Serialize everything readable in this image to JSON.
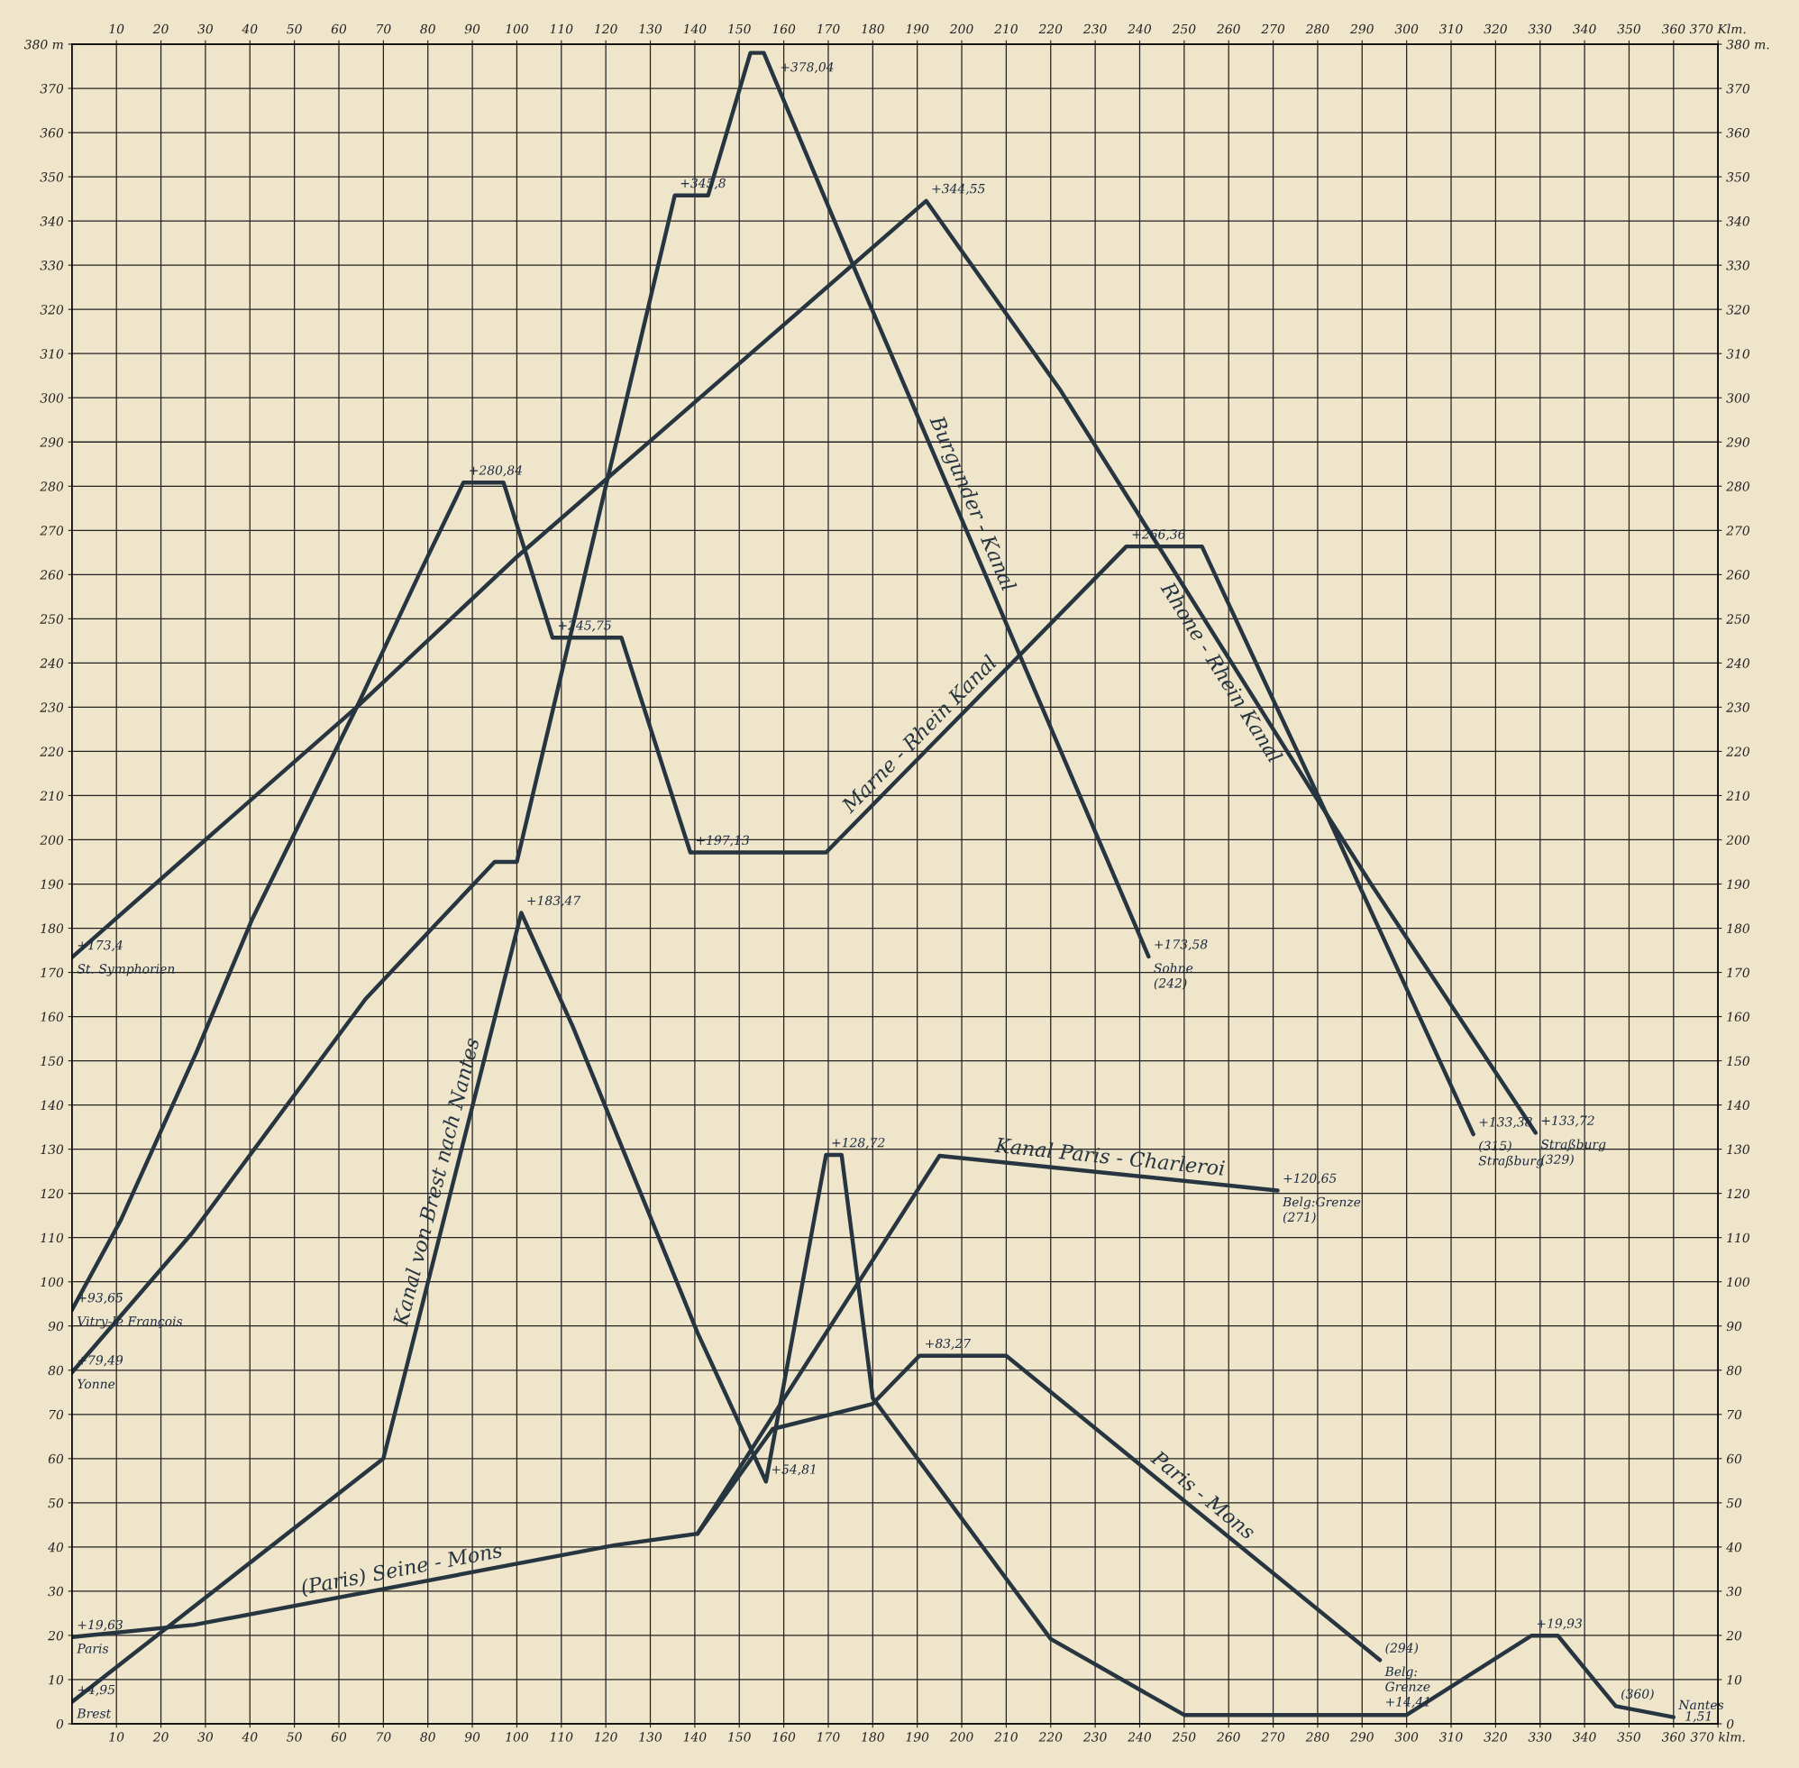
{
  "chart_data": {
    "type": "line",
    "series": [
      {
        "name": "Marne - Rhein Kanal",
        "color": "#26353f",
        "x": [
          0,
          11,
          28,
          40.5,
          64,
          78,
          88,
          97,
          108,
          123.5,
          139,
          169.5,
          237,
          254,
          268,
          281,
          315
        ],
        "values": [
          93.65,
          114,
          152,
          182,
          230,
          260,
          280.84,
          280.84,
          245.75,
          245.75,
          197.13,
          197.13,
          266.36,
          266.36,
          236,
          208,
          133.38
        ]
      },
      {
        "name": "Rhone - Rhein Kanal",
        "color": "#26353f",
        "x": [
          0,
          30,
          64,
          100,
          140,
          192,
          222,
          242,
          280,
          292,
          329
        ],
        "values": [
          173.4,
          200,
          230,
          264,
          299,
          344.55,
          302,
          270,
          209,
          190,
          133.72
        ]
      },
      {
        "name": "Burgunder - Kanal",
        "color": "#26353f",
        "x": [
          0,
          27,
          66,
          95,
          100,
          120,
          135.5,
          143,
          152.5,
          155.5,
          176,
          242
        ],
        "values": [
          79.49,
          111,
          164,
          195,
          195,
          280,
          345.8,
          345.8,
          378.04,
          378.04,
          329,
          173.58
        ]
      },
      {
        "name": "Kanal von Brest nach Nantes",
        "color": "#26353f",
        "x": [
          0,
          70,
          101,
          112.6,
          140.6,
          156,
          169.5,
          173,
          180,
          220,
          250,
          300,
          328,
          334,
          347,
          360
        ],
        "values": [
          4.95,
          60,
          183.47,
          157.7,
          88.5,
          54.81,
          128.72,
          128.72,
          73.7,
          19.2,
          2,
          2,
          19.93,
          19.93,
          4,
          1.51
        ]
      },
      {
        "name": "(Paris) Seine - Mons",
        "color": "#26353f",
        "x": [
          0,
          27.5,
          122,
          140.6
        ],
        "values": [
          19.63,
          22.4,
          40.4,
          43
        ]
      },
      {
        "name": "Paris - Mons",
        "color": "#26353f",
        "x": [
          140.6,
          157.5,
          180,
          190.5,
          210,
          294
        ],
        "values": [
          43,
          66.7,
          72.4,
          83.27,
          83.27,
          14.41
        ]
      },
      {
        "name": "Kanal Paris - Charleroi",
        "color": "#26353f",
        "x": [
          140.6,
          195,
          271
        ],
        "values": [
          43,
          128.5,
          120.65
        ]
      }
    ],
    "xlim": [
      0,
      370
    ],
    "xticks": [
      10,
      20,
      30,
      40,
      50,
      60,
      70,
      80,
      90,
      100,
      110,
      120,
      130,
      140,
      150,
      160,
      170,
      180,
      190,
      200,
      210,
      220,
      230,
      240,
      250,
      260,
      270,
      280,
      290,
      300,
      310,
      320,
      330,
      340,
      350,
      360,
      {
        "value": 370,
        "label": "370 klm."
      }
    ],
    "x2lim": [
      0,
      370
    ],
    "x2ticks": [
      10,
      20,
      30,
      40,
      50,
      60,
      70,
      80,
      90,
      100,
      110,
      120,
      130,
      140,
      150,
      160,
      170,
      180,
      190,
      200,
      210,
      220,
      230,
      240,
      250,
      260,
      270,
      280,
      290,
      300,
      310,
      320,
      330,
      340,
      350,
      360,
      {
        "value": 370,
        "label": "370 Klm."
      }
    ],
    "ylim": [
      0,
      380
    ],
    "yticks": [
      0,
      10,
      20,
      30,
      40,
      50,
      60,
      70,
      80,
      90,
      100,
      110,
      120,
      130,
      140,
      150,
      160,
      170,
      180,
      190,
      200,
      210,
      220,
      230,
      240,
      250,
      260,
      270,
      280,
      290,
      300,
      310,
      320,
      330,
      340,
      350,
      360,
      370,
      {
        "value": 380,
        "label": "380 m"
      }
    ],
    "y2lim": [
      0,
      380
    ],
    "y2ticks": [
      0,
      10,
      20,
      30,
      40,
      50,
      60,
      70,
      80,
      90,
      100,
      110,
      120,
      130,
      140,
      150,
      160,
      170,
      180,
      190,
      200,
      210,
      220,
      230,
      240,
      250,
      260,
      270,
      280,
      290,
      300,
      310,
      320,
      330,
      340,
      350,
      360,
      370,
      {
        "value": 380,
        "label": "380 m."
      }
    ],
    "grid": true,
    "annotations": [
      {
        "text": "+173,4",
        "x": 0,
        "y": 173.4
      },
      {
        "text": "St. Symphorien",
        "x": 0,
        "y": 173.4
      },
      {
        "text": "+93,65",
        "x": 0,
        "y": 93.65
      },
      {
        "text": "Vitry-le François",
        "x": 0,
        "y": 93.65
      },
      {
        "text": "+79,49",
        "x": 0,
        "y": 79.49
      },
      {
        "text": "Yonne",
        "x": 0,
        "y": 79.49
      },
      {
        "text": "+19,63",
        "x": 0,
        "y": 19.63
      },
      {
        "text": "Paris",
        "x": 0,
        "y": 19.63
      },
      {
        "text": "+4,95",
        "x": 0,
        "y": 4.95
      },
      {
        "text": "Brest",
        "x": 0,
        "y": 4.95
      },
      {
        "text": "+280,84",
        "x": 88,
        "y": 280.84
      },
      {
        "text": "+245,75",
        "x": 108,
        "y": 245.75
      },
      {
        "text": "+345,8",
        "x": 135.5,
        "y": 345.8
      },
      {
        "text": "+378,04",
        "x": 158,
        "y": 372.06
      },
      {
        "text": "+344,55",
        "x": 192,
        "y": 344.55
      },
      {
        "text": "+197,13",
        "x": 139,
        "y": 197.13
      },
      {
        "text": "+266,36",
        "x": 237,
        "y": 266.36
      },
      {
        "text": "+183,47",
        "x": 101,
        "y": 183.47
      },
      {
        "text": "+173,58",
        "x": 242,
        "y": 173.58
      },
      {
        "text": "Sohne",
        "x": 242,
        "y": 173.58
      },
      {
        "text": "(242)",
        "x": 242,
        "y": 173.58
      },
      {
        "text": "+54,81",
        "x": 156,
        "y": 54.81
      },
      {
        "text": "+128,72",
        "x": 169.5,
        "y": 128.72
      },
      {
        "text": "+83,27",
        "x": 190.5,
        "y": 83.27
      },
      {
        "text": "+120,65",
        "x": 271,
        "y": 120.65
      },
      {
        "text": "Belg:Grenze",
        "x": 271,
        "y": 120.65
      },
      {
        "text": "(271)",
        "x": 271,
        "y": 120.65
      },
      {
        "text": "+133,38",
        "x": 315,
        "y": 133.38
      },
      {
        "text": "(315)",
        "x": 315,
        "y": 133.38
      },
      {
        "text": "Straßburg",
        "x": 315,
        "y": 133.38
      },
      {
        "text": "+133,72",
        "x": 329,
        "y": 133.72
      },
      {
        "text": "Straßburg",
        "x": 329,
        "y": 133.72
      },
      {
        "text": "(329)",
        "x": 329,
        "y": 133.72
      },
      {
        "text": "(294)",
        "x": 294,
        "y": 14.41
      },
      {
        "text": "Belg:",
        "x": 294,
        "y": 14.41
      },
      {
        "text": "Grenze",
        "x": 294,
        "y": 14.41
      },
      {
        "text": "+14,41",
        "x": 294,
        "y": 14.41
      },
      {
        "text": "+19,93",
        "x": 328,
        "y": 19.93
      },
      {
        "text": "(360)",
        "x": 347,
        "y": 4
      },
      {
        "text": "Nantes",
        "x": 360,
        "y": 1.51
      },
      {
        "text": "1,51",
        "x": 360,
        "y": 1.51
      }
    ]
  }
}
